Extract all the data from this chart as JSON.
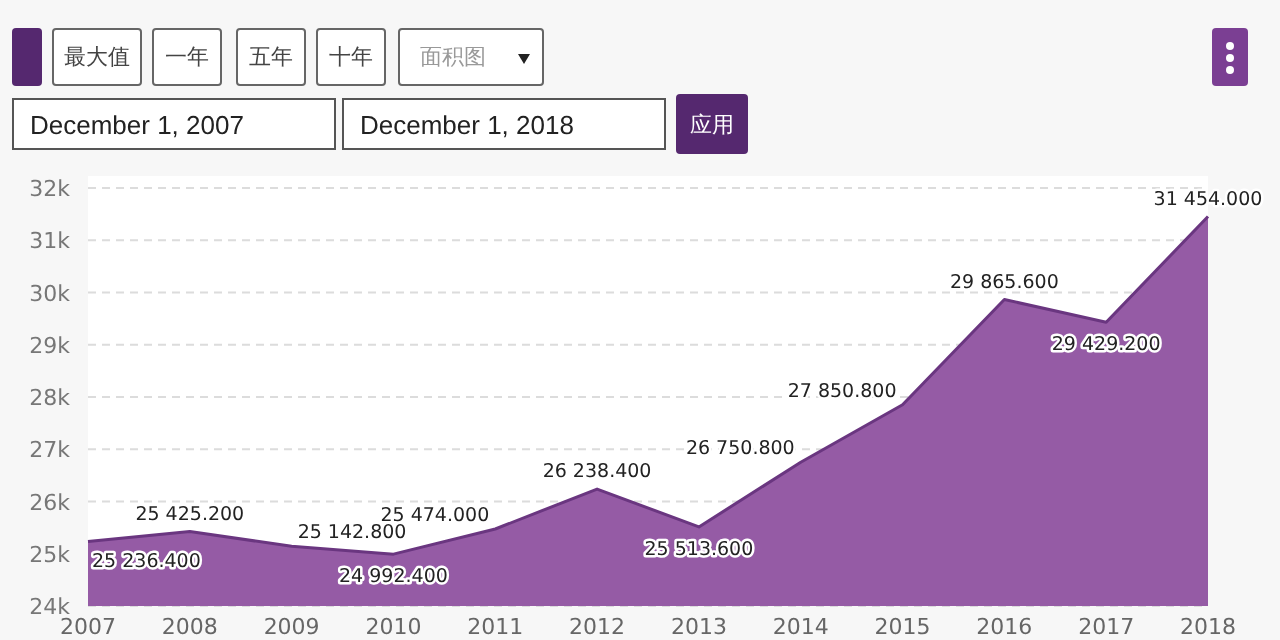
{
  "chart_data": {
    "type": "area",
    "annotations": [
      "最大值",
      "一年",
      "五年",
      "十年",
      "面积图",
      "December 1, 2007",
      "December 1, 2018",
      "应用"
    ],
    "x": [
      2007,
      2008,
      2009,
      2010,
      2011,
      2012,
      2013,
      2014,
      2015,
      2016,
      2017,
      2018
    ],
    "values": [
      25236.4,
      25425.2,
      25142.8,
      24992.4,
      25474.0,
      26238.4,
      25513.6,
      26750.8,
      27850.8,
      29865.6,
      29429.2,
      31454.0
    ],
    "value_labels": [
      "25 236.400",
      "25 425.200",
      "25 142.800",
      "24 992.400",
      "25 474.000",
      "26 238.400",
      "25 513.600",
      "26 750.800",
      "27 850.800",
      "29 865.600",
      "29 429.200",
      "31 454.000"
    ],
    "color": "#955ba5",
    "xlim": [
      2007,
      2018
    ],
    "xticks": [
      2007,
      2008,
      2009,
      2010,
      2011,
      2012,
      2013,
      2014,
      2015,
      2016,
      2017,
      2018
    ],
    "ylim": [
      24000,
      32000
    ],
    "yticks": [
      {
        "value": 24000,
        "label": "24k"
      },
      {
        "value": 25000,
        "label": "25k"
      },
      {
        "value": 26000,
        "label": "26k"
      },
      {
        "value": 27000,
        "label": "27k"
      },
      {
        "value": 28000,
        "label": "28k"
      },
      {
        "value": 29000,
        "label": "29k"
      },
      {
        "value": 30000,
        "label": "30k"
      },
      {
        "value": 31000,
        "label": "31k"
      },
      {
        "value": 32000,
        "label": "32k"
      }
    ],
    "grid": "y"
  }
}
